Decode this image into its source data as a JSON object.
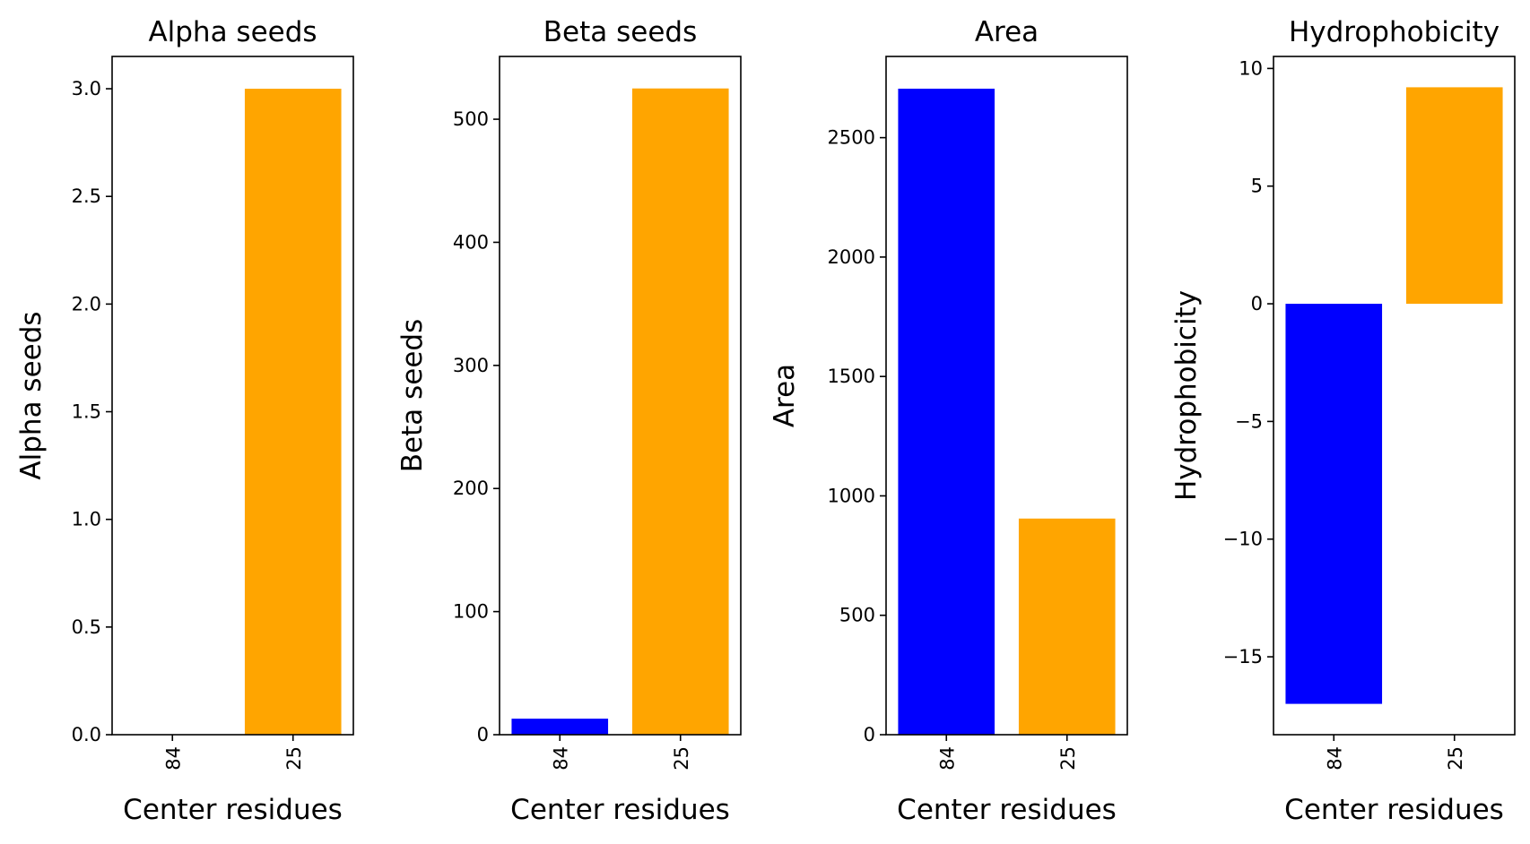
{
  "colors": {
    "bar_84": "#0000ff",
    "bar_25": "#ffa500",
    "axis": "#000000",
    "background": "#ffffff"
  },
  "chart_data": [
    {
      "type": "bar",
      "title": "Alpha seeds",
      "xlabel": "Center residues",
      "ylabel": "Alpha seeds",
      "categories": [
        "84",
        "25"
      ],
      "values": [
        0,
        3.0
      ],
      "bar_colors": [
        "#0000ff",
        "#ffa500"
      ],
      "ylim": [
        0,
        3.15
      ],
      "yticks": [
        0.0,
        0.5,
        1.0,
        1.5,
        2.0,
        2.5,
        3.0
      ],
      "ytick_labels": [
        "0.0",
        "0.5",
        "1.0",
        "1.5",
        "2.0",
        "2.5",
        "3.0"
      ],
      "grid": false
    },
    {
      "type": "bar",
      "title": "Beta seeds",
      "xlabel": "Center residues",
      "ylabel": "Beta seeds",
      "categories": [
        "84",
        "25"
      ],
      "values": [
        13,
        525
      ],
      "bar_colors": [
        "#0000ff",
        "#ffa500"
      ],
      "ylim": [
        0,
        551
      ],
      "yticks": [
        0,
        100,
        200,
        300,
        400,
        500
      ],
      "ytick_labels": [
        "0",
        "100",
        "200",
        "300",
        "400",
        "500"
      ],
      "grid": false
    },
    {
      "type": "bar",
      "title": "Area",
      "xlabel": "Center residues",
      "ylabel": "Area",
      "categories": [
        "84",
        "25"
      ],
      "values": [
        2705,
        905
      ],
      "bar_colors": [
        "#0000ff",
        "#ffa500"
      ],
      "ylim": [
        0,
        2840
      ],
      "yticks": [
        0,
        500,
        1000,
        1500,
        2000,
        2500
      ],
      "ytick_labels": [
        "0",
        "500",
        "1000",
        "1500",
        "2000",
        "2500"
      ],
      "grid": false
    },
    {
      "type": "bar",
      "title": "Hydrophobicity",
      "xlabel": "Center residues",
      "ylabel": "Hydrophobicity",
      "categories": [
        "84",
        "25"
      ],
      "values": [
        -17.0,
        9.2
      ],
      "bar_colors": [
        "#0000ff",
        "#ffa500"
      ],
      "ylim": [
        -18.31,
        10.51
      ],
      "yticks": [
        -15,
        -10,
        -5,
        0,
        5,
        10
      ],
      "ytick_labels": [
        "−15",
        "−10",
        "−5",
        "0",
        "5",
        "10"
      ],
      "grid": false
    }
  ]
}
